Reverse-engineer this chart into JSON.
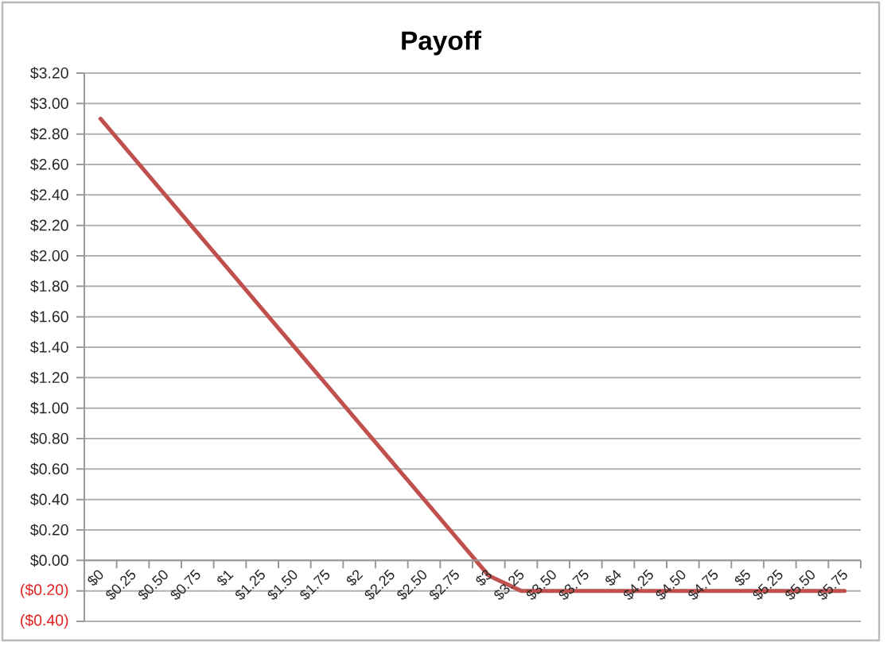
{
  "chart_data": {
    "type": "line",
    "title": "Payoff",
    "categories": [
      "$0",
      "$0.25",
      "$0.50",
      "$0.75",
      "$1",
      "$1.25",
      "$1.50",
      "$1.75",
      "$2",
      "$2.25",
      "$2.50",
      "$2.75",
      "$3",
      "$3.25",
      "$3.50",
      "$3.75",
      "$4",
      "$4.25",
      "$4.50",
      "$4.75",
      "$5",
      "$5.25",
      "$5.50",
      "$5.75"
    ],
    "series": [
      {
        "color": "#c0504d",
        "values": [
          2.9,
          2.65,
          2.4,
          2.15,
          1.9,
          1.65,
          1.4,
          1.15,
          0.9,
          0.65,
          0.4,
          0.15,
          -0.1,
          -0.2,
          -0.2,
          -0.2,
          -0.2,
          -0.2,
          -0.2,
          -0.2,
          -0.2,
          -0.2,
          -0.2,
          -0.2
        ]
      }
    ],
    "ylim": [
      -0.4,
      3.2
    ],
    "yticks": [
      {
        "value": -0.4,
        "label": "($0.40)"
      },
      {
        "value": -0.2,
        "label": "($0.20)"
      },
      {
        "value": 0,
        "label": "$0.00"
      },
      {
        "value": 0.2,
        "label": "$0.20"
      },
      {
        "value": 0.4,
        "label": "$0.40"
      },
      {
        "value": 0.6,
        "label": "$0.60"
      },
      {
        "value": 0.8,
        "label": "$0.80"
      },
      {
        "value": 1.0,
        "label": "$1.00"
      },
      {
        "value": 1.2,
        "label": "$1.20"
      },
      {
        "value": 1.4,
        "label": "$1.40"
      },
      {
        "value": 1.6,
        "label": "$1.60"
      },
      {
        "value": 1.8,
        "label": "$1.80"
      },
      {
        "value": 2.0,
        "label": "$2.00"
      },
      {
        "value": 2.2,
        "label": "$2.20"
      },
      {
        "value": 2.4,
        "label": "$2.40"
      },
      {
        "value": 2.6,
        "label": "$2.60"
      },
      {
        "value": 2.8,
        "label": "$2.80"
      },
      {
        "value": 3.0,
        "label": "$3.00"
      },
      {
        "value": 3.2,
        "label": "$3.20"
      }
    ],
    "grid": "y",
    "line_style": "solid"
  }
}
